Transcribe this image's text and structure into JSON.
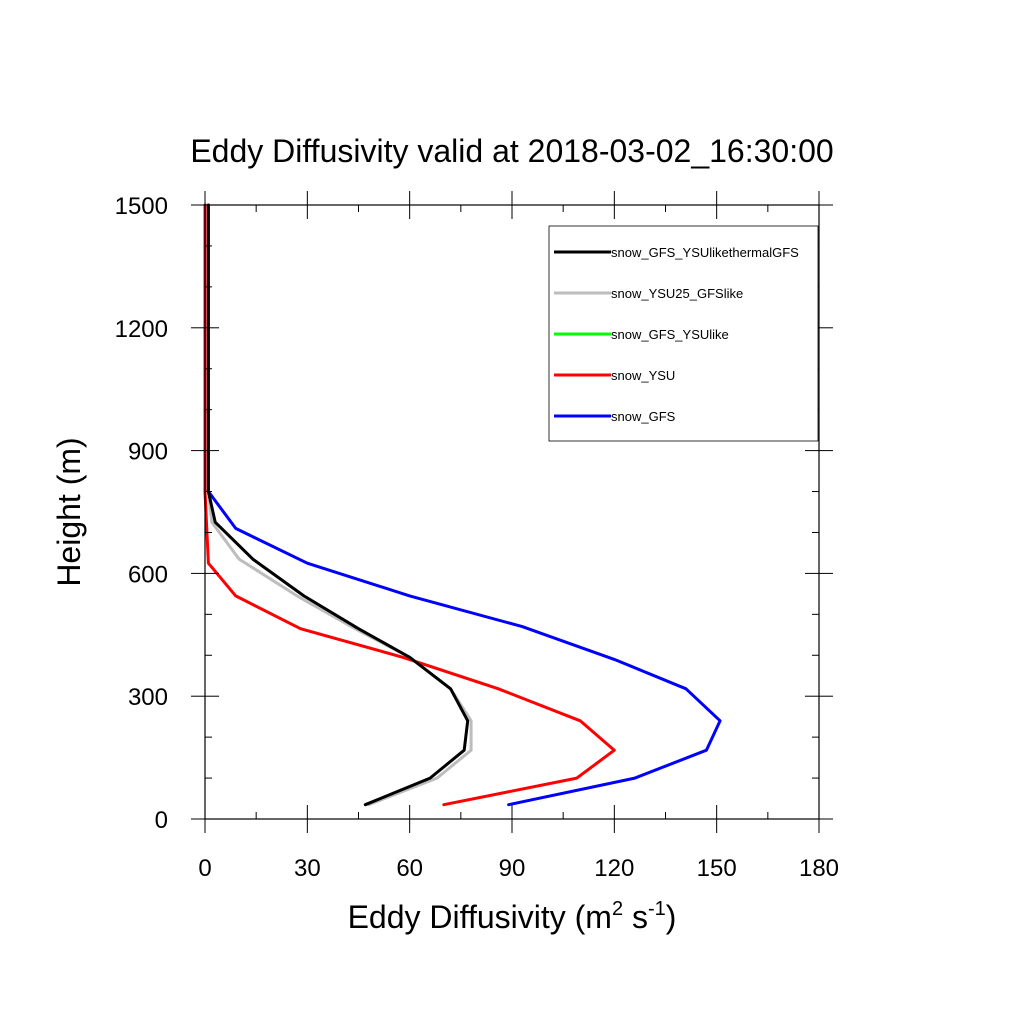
{
  "chart_data": {
    "type": "line",
    "title": "Eddy Diffusivity valid at 2018-03-02_16:30:00",
    "xlabel": {
      "base": "Eddy Diffusivity (m",
      "sup1": "2",
      "mid": " s",
      "sup2": "-1",
      "end": ")"
    },
    "ylabel": "Height (m)",
    "xlim": [
      0,
      180
    ],
    "ylim": [
      0,
      1500
    ],
    "xticks": [
      0,
      30,
      60,
      90,
      120,
      150,
      180
    ],
    "yticks": [
      0,
      300,
      600,
      900,
      1200,
      1500
    ],
    "xtick_labels": [
      "0",
      "30",
      "60",
      "90",
      "120",
      "150",
      "180"
    ],
    "ytick_labels": [
      "0",
      "300",
      "600",
      "900",
      "1200",
      "1500"
    ],
    "grid": false,
    "legend_position": "top-right",
    "series": [
      {
        "name": "snow_GFS_YSUlikethermalGFS",
        "color": "#000000",
        "points": [
          [
            47,
            35
          ],
          [
            66,
            100
          ],
          [
            76,
            168
          ],
          [
            77,
            240
          ],
          [
            72,
            318
          ],
          [
            60,
            395
          ],
          [
            45,
            465
          ],
          [
            29,
            545
          ],
          [
            14,
            635
          ],
          [
            3,
            725
          ],
          [
            1,
            800
          ],
          [
            1,
            900
          ],
          [
            1,
            1000
          ],
          [
            1,
            1100
          ],
          [
            1,
            1200
          ],
          [
            1,
            1300
          ],
          [
            1,
            1400
          ],
          [
            1,
            1500
          ]
        ]
      },
      {
        "name": "snow_YSU25_GFSlike",
        "color": "#bdbdbd",
        "points": [
          [
            48,
            35
          ],
          [
            68,
            100
          ],
          [
            78,
            168
          ],
          [
            78,
            240
          ],
          [
            72,
            318
          ],
          [
            60,
            395
          ],
          [
            44,
            465
          ],
          [
            27,
            545
          ],
          [
            10,
            635
          ],
          [
            2,
            725
          ],
          [
            1,
            800
          ],
          [
            1,
            900
          ],
          [
            1,
            1000
          ],
          [
            1,
            1100
          ],
          [
            1,
            1200
          ],
          [
            1,
            1300
          ],
          [
            1,
            1400
          ],
          [
            1,
            1500
          ]
        ]
      },
      {
        "name": "snow_GFS_YSUlike",
        "color": "#00ff00",
        "points": []
      },
      {
        "name": "snow_YSU",
        "color": "#ff0000",
        "points": [
          [
            70,
            35
          ],
          [
            109,
            100
          ],
          [
            120,
            168
          ],
          [
            110,
            240
          ],
          [
            86,
            318
          ],
          [
            58,
            395
          ],
          [
            28,
            465
          ],
          [
            9,
            545
          ],
          [
            1,
            625
          ],
          [
            0,
            800
          ],
          [
            0,
            900
          ],
          [
            0,
            1000
          ],
          [
            0,
            1100
          ],
          [
            0,
            1200
          ],
          [
            0,
            1300
          ],
          [
            0,
            1400
          ],
          [
            0,
            1500
          ]
        ]
      },
      {
        "name": "snow_GFS",
        "color": "#0000ff",
        "points": [
          [
            89,
            35
          ],
          [
            126,
            100
          ],
          [
            147,
            168
          ],
          [
            151,
            240
          ],
          [
            141,
            318
          ],
          [
            120,
            390
          ],
          [
            93,
            470
          ],
          [
            60,
            545
          ],
          [
            30,
            625
          ],
          [
            9,
            710
          ],
          [
            1,
            800
          ],
          [
            1,
            900
          ],
          [
            1,
            1000
          ],
          [
            1,
            1100
          ],
          [
            1,
            1200
          ],
          [
            1,
            1300
          ],
          [
            1,
            1400
          ],
          [
            1,
            1500
          ]
        ]
      }
    ]
  }
}
